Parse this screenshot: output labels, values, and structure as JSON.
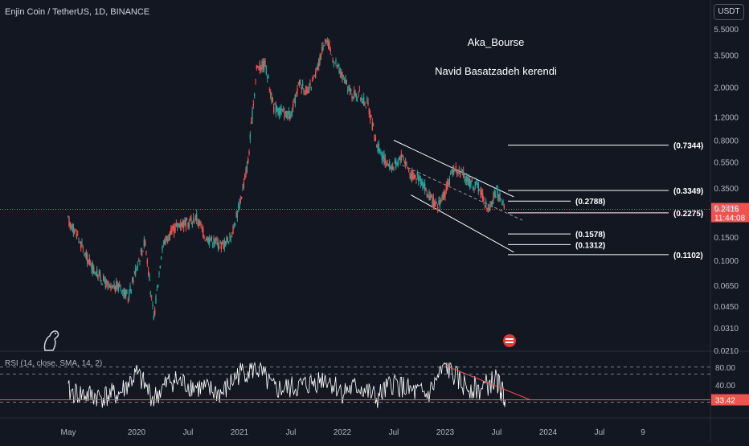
{
  "header": {
    "symbol_title": "Enjin Coin / TetherUS, 1D, BINANCE",
    "currency": "USDT"
  },
  "annotations": {
    "author": "Aka_Bourse",
    "name": "Navid Basatzadeh kerendi"
  },
  "chart_data": {
    "type": "line",
    "title": "Enjin Coin / TetherUS, 1D, BINANCE",
    "scale": "log",
    "grid": false,
    "price_axis_ticks": [
      "5.5000",
      "3.5000",
      "2.0000",
      "1.2000",
      "0.8000",
      "0.5500",
      "0.3500",
      "0.2500",
      "0.1500",
      "0.1000",
      "0.0650",
      "0.0450",
      "0.0310",
      "0.0210"
    ],
    "time_axis_labels": [
      "May",
      "2020",
      "Jul",
      "2021",
      "Jul",
      "2022",
      "Jul",
      "2023",
      "Jul",
      "2024",
      "Jul",
      "9"
    ],
    "price_series": {
      "name": "ENJUSDT",
      "x": [
        "2019-05",
        "2019-06",
        "2019-07",
        "2019-08",
        "2019-09",
        "2019-10",
        "2019-11",
        "2019-12",
        "2020-01",
        "2020-02",
        "2020-03",
        "2020-04",
        "2020-05",
        "2020-06",
        "2020-07",
        "2020-08",
        "2020-09",
        "2020-10",
        "2020-11",
        "2020-12",
        "2021-01",
        "2021-02",
        "2021-03",
        "2021-04",
        "2021-05",
        "2021-06",
        "2021-07",
        "2021-08",
        "2021-09",
        "2021-10",
        "2021-11",
        "2021-12",
        "2022-01",
        "2022-02",
        "2022-03",
        "2022-04",
        "2022-05",
        "2022-06",
        "2022-07",
        "2022-08",
        "2022-09",
        "2022-10",
        "2022-11",
        "2022-12",
        "2023-01",
        "2023-02",
        "2023-03",
        "2023-04",
        "2023-05",
        "2023-06",
        "2023-07",
        "2023-08"
      ],
      "values": [
        0.2,
        0.16,
        0.11,
        0.085,
        0.072,
        0.06,
        0.065,
        0.052,
        0.09,
        0.14,
        0.036,
        0.13,
        0.16,
        0.19,
        0.19,
        0.21,
        0.15,
        0.14,
        0.13,
        0.15,
        0.26,
        0.55,
        2.8,
        3.0,
        1.4,
        1.3,
        1.2,
        2.2,
        1.8,
        2.6,
        4.8,
        3.2,
        2.4,
        1.8,
        1.75,
        1.45,
        0.75,
        0.55,
        0.5,
        0.62,
        0.44,
        0.42,
        0.31,
        0.25,
        0.32,
        0.5,
        0.44,
        0.38,
        0.35,
        0.24,
        0.33,
        0.2416
      ]
    },
    "current_price": {
      "value": 0.2416,
      "label": "0.2416",
      "countdown": "11:44:08"
    },
    "horizontal_levels": [
      {
        "value": 0.7344,
        "label": "(0.7344)"
      },
      {
        "value": 0.3349,
        "label": "(0.3349)"
      },
      {
        "value": 0.2788,
        "label": "(0.2788)"
      },
      {
        "value": 0.2275,
        "label": "(0.2275)"
      },
      {
        "value": 0.1578,
        "label": "(0.1578)"
      },
      {
        "value": 0.1312,
        "label": "(0.1312)"
      },
      {
        "value": 0.1102,
        "label": "(0.1102)"
      }
    ],
    "channel": {
      "upper": [
        {
          "x": "2022-07",
          "y": 0.8
        },
        {
          "x": "2023-09",
          "y": 0.3
        }
      ],
      "mid": [
        {
          "x": "2022-08",
          "y": 0.52
        },
        {
          "x": "2023-10",
          "y": 0.2
        }
      ],
      "lower": [
        {
          "x": "2022-09",
          "y": 0.31
        },
        {
          "x": "2023-09",
          "y": 0.115
        }
      ]
    },
    "rsi": {
      "title": "RSI (14, close, SMA, 14, 2)",
      "levels": [
        80,
        70,
        30
      ],
      "ticks": [
        "80.00",
        "40.00"
      ],
      "current": 33.42,
      "current_label": "33.42",
      "x": [
        "2019-05",
        "2019-07",
        "2019-09",
        "2019-11",
        "2020-01",
        "2020-03",
        "2020-05",
        "2020-07",
        "2020-09",
        "2020-11",
        "2021-01",
        "2021-03",
        "2021-05",
        "2021-07",
        "2021-09",
        "2021-11",
        "2022-01",
        "2022-03",
        "2022-05",
        "2022-07",
        "2022-09",
        "2022-11",
        "2023-01",
        "2023-03",
        "2023-05",
        "2023-07",
        "2023-08"
      ],
      "values": [
        45,
        40,
        38,
        42,
        70,
        35,
        62,
        55,
        48,
        42,
        72,
        78,
        48,
        50,
        55,
        65,
        45,
        52,
        35,
        58,
        45,
        40,
        82,
        55,
        48,
        62,
        33.42
      ],
      "trendline": [
        {
          "x": "2023-01",
          "y": 82
        },
        {
          "x": "2023-11",
          "y": 33
        }
      ]
    }
  }
}
